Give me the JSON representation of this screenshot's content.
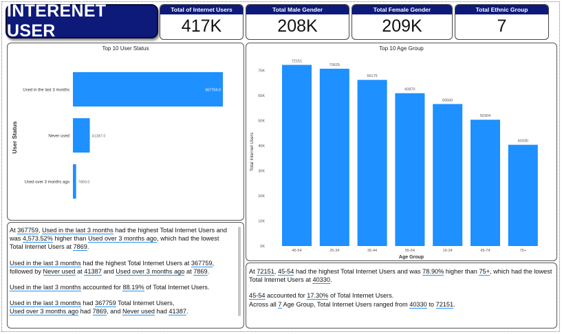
{
  "header": {
    "title": "INTERENET USER"
  },
  "kpis": [
    {
      "label": "Total of Internet Users",
      "value": "417K"
    },
    {
      "label": "Total Male Gender",
      "value": "208K"
    },
    {
      "label": "Total Female Gender",
      "value": "209K"
    },
    {
      "label": "Total Ethnic Group",
      "value": "7"
    }
  ],
  "status_chart": {
    "title": "Top 10 User Status",
    "ylabel": "User Status",
    "bar_color": "#1e90ff"
  },
  "age_chart": {
    "title": "Top 10 Age Group",
    "xlabel": "Age Group",
    "ylabel": "Total Internet Users",
    "bar_color": "#1e90ff"
  },
  "chart_data": [
    {
      "type": "bar",
      "orientation": "horizontal",
      "title": "Top 10 User Status",
      "ylabel": "User Status",
      "categories": [
        "Used in the last 3 months",
        "Never used",
        "Used over 3 months ago"
      ],
      "values": [
        367759,
        41387,
        7869
      ],
      "data_labels": [
        "367759.0",
        "41387.0",
        "7869.0"
      ]
    },
    {
      "type": "bar",
      "title": "Top 10 Age Group",
      "xlabel": "Age Group",
      "ylabel": "Total Internet Users",
      "categories": [
        "45-54",
        "25-34",
        "35-44",
        "55-64",
        "16-24",
        "65-74",
        "75+"
      ],
      "values": [
        72151,
        70625,
        66175,
        60870,
        56560,
        50304,
        40330
      ],
      "ylim": [
        0,
        75000
      ],
      "yticks": [
        "0K",
        "10K",
        "20K",
        "30K",
        "40K",
        "50K",
        "60K",
        "70K"
      ]
    }
  ],
  "left_narrative": {
    "p1": {
      "v1": "367759",
      "t1": ", ",
      "v2": "Used in the last 3 months",
      "t2": " had the highest Total Internet Users and was ",
      "v3": "4,573.52%",
      "t3": " higher than ",
      "v4": "Used over 3 months ago",
      "t4": ", which had the lowest Total Internet Users at ",
      "v5": "7869",
      "t5": "."
    },
    "p2": {
      "v1": "Used in the last 3 months",
      "t1": " had the highest Total Internet Users at ",
      "v2": "367759",
      "t2": ", followed by ",
      "v3": "Never used",
      "t3": " at ",
      "v4": "41387",
      "t4": " and ",
      "v5": "Used over 3 months ago",
      "t5": " at ",
      "v6": "7869",
      "t6": "."
    },
    "p3": {
      "v1": "Used in the last 3 months",
      "t1": " accounted for ",
      "v2": "88.19%",
      "t2": " of Total Internet Users."
    },
    "p4": {
      "v1": "Used in the last 3 months",
      "t1": " had ",
      "v2": "367759",
      "t2": " Total Internet Users,",
      "v3": "Used over 3 months ago",
      "t3": " had ",
      "v4": "7869",
      "t4": ", and ",
      "v5": "Never used",
      "t5": " had ",
      "v6": "41387",
      "t6": "."
    }
  },
  "right_narrative": {
    "p1": {
      "v1": "72151",
      "t1": ", ",
      "v2": "45-54",
      "t2": " had the highest Total Internet Users and was ",
      "v3": "78.90%",
      "t3": " higher than ",
      "v4": "75+",
      "t4": ", which had the lowest Total Internet Users at ",
      "v5": "40330",
      "t5": "."
    },
    "p2": {
      "v1": "45-54",
      "t1": " accounted for ",
      "v2": "17.30%",
      "t2": " of Total Internet Users.",
      "t3": "Across all ",
      "v3": "7",
      "t4": " Age Group, Total Internet Users ranged from ",
      "v4": "40330",
      "t5": " to ",
      "v5": "72151",
      "t6": "."
    }
  }
}
